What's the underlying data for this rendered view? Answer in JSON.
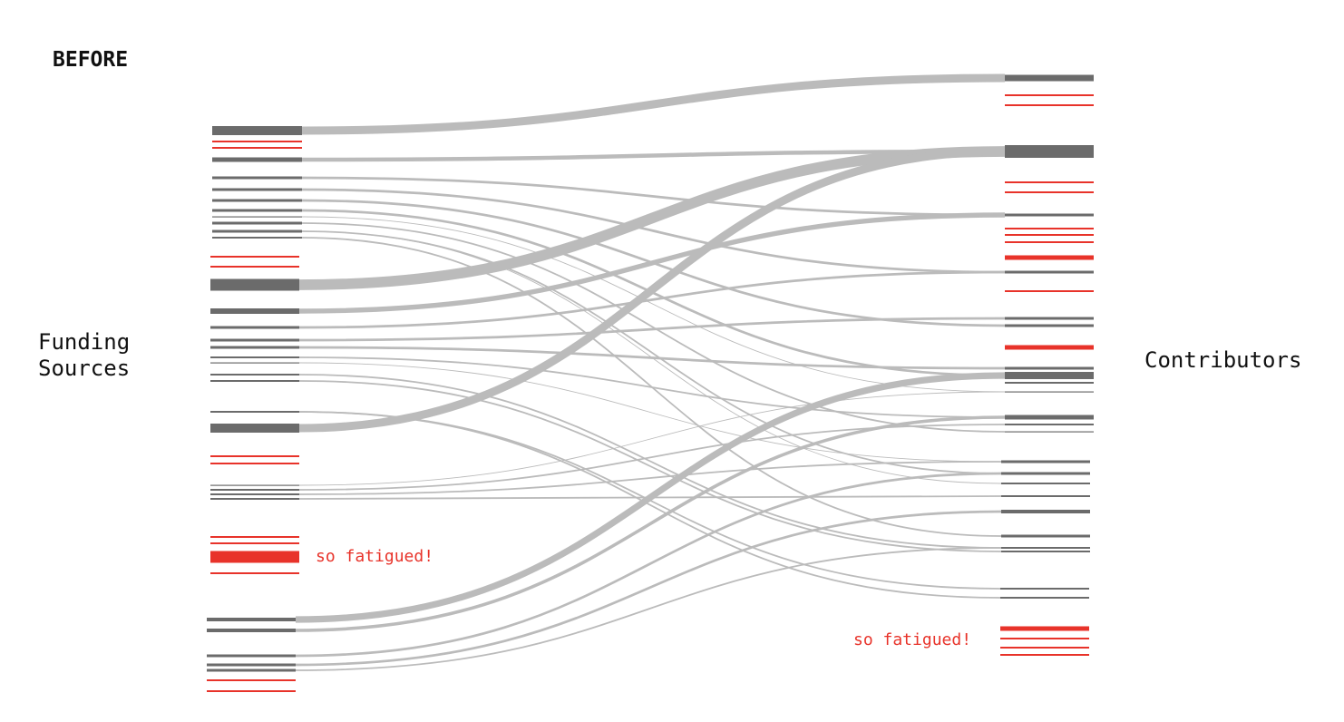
{
  "title": "BEFORE",
  "left_label": "Funding\nSources",
  "right_label": "Contributors",
  "annotations": {
    "left": "so fatigued!",
    "right": "so fatigued!"
  },
  "colors": {
    "active": "#6b6b6b",
    "fatigued": "#e8332a",
    "flow": "#bbbbbb",
    "text": "#111111"
  },
  "left_nodes": [
    {
      "status": "active",
      "value": 10
    },
    {
      "status": "fatigued",
      "value": 2
    },
    {
      "status": "fatigued",
      "value": 2
    },
    {
      "status": "active",
      "value": 5
    },
    {
      "status": "active",
      "value": 3
    },
    {
      "status": "active",
      "value": 3
    },
    {
      "status": "active",
      "value": 3
    },
    {
      "status": "active",
      "value": 3
    },
    {
      "status": "active",
      "value": 1
    },
    {
      "status": "active",
      "value": 3
    },
    {
      "status": "active",
      "value": 3
    },
    {
      "status": "active",
      "value": 2
    },
    {
      "status": "fatigued",
      "value": 2
    },
    {
      "status": "fatigued",
      "value": 2
    },
    {
      "status": "active",
      "value": 13
    },
    {
      "status": "active",
      "value": 6
    },
    {
      "status": "active",
      "value": 3
    },
    {
      "status": "active",
      "value": 3
    },
    {
      "status": "active",
      "value": 3
    },
    {
      "status": "active",
      "value": 2
    },
    {
      "status": "active",
      "value": 1
    },
    {
      "status": "active",
      "value": 2
    },
    {
      "status": "active",
      "value": 2
    },
    {
      "status": "active",
      "value": 2
    },
    {
      "status": "active",
      "value": 10
    },
    {
      "status": "fatigued",
      "value": 2
    },
    {
      "status": "fatigued",
      "value": 2
    },
    {
      "status": "active",
      "value": 1
    },
    {
      "status": "active",
      "value": 2
    },
    {
      "status": "active",
      "value": 2
    },
    {
      "status": "active",
      "value": 2
    },
    {
      "status": "fatigued",
      "value": 2
    },
    {
      "status": "fatigued",
      "value": 2
    },
    {
      "status": "fatigued",
      "value": 13
    },
    {
      "status": "fatigued",
      "value": 2
    },
    {
      "status": "active",
      "value": 4
    },
    {
      "status": "active",
      "value": 4
    },
    {
      "status": "active",
      "value": 3
    },
    {
      "status": "active",
      "value": 3
    },
    {
      "status": "active",
      "value": 3
    },
    {
      "status": "fatigued",
      "value": 2
    },
    {
      "status": "fatigued",
      "value": 2
    }
  ],
  "right_nodes": [
    {
      "status": "active",
      "value": 7
    },
    {
      "status": "fatigued",
      "value": 2
    },
    {
      "status": "fatigued",
      "value": 2
    },
    {
      "status": "active",
      "value": 14
    },
    {
      "status": "fatigued",
      "value": 2
    },
    {
      "status": "fatigued",
      "value": 2
    },
    {
      "status": "active",
      "value": 3
    },
    {
      "status": "fatigued",
      "value": 2
    },
    {
      "status": "fatigued",
      "value": 2
    },
    {
      "status": "fatigued",
      "value": 2
    },
    {
      "status": "fatigued",
      "value": 5
    },
    {
      "status": "active",
      "value": 3
    },
    {
      "status": "fatigued",
      "value": 2
    },
    {
      "status": "active",
      "value": 3
    },
    {
      "status": "active",
      "value": 3
    },
    {
      "status": "fatigued",
      "value": 5
    },
    {
      "status": "active",
      "value": 3
    },
    {
      "status": "active",
      "value": 8
    },
    {
      "status": "active",
      "value": 2
    },
    {
      "status": "active",
      "value": 1
    },
    {
      "status": "active",
      "value": 5
    },
    {
      "status": "active",
      "value": 2
    },
    {
      "status": "active",
      "value": 1
    },
    {
      "status": "active",
      "value": 3
    },
    {
      "status": "active",
      "value": 3
    },
    {
      "status": "active",
      "value": 2
    },
    {
      "status": "active",
      "value": 2
    },
    {
      "status": "active",
      "value": 4
    },
    {
      "status": "active",
      "value": 3
    },
    {
      "status": "active",
      "value": 2
    },
    {
      "status": "active",
      "value": 2
    },
    {
      "status": "active",
      "value": 2
    },
    {
      "status": "active",
      "value": 2
    },
    {
      "status": "fatigued",
      "value": 5
    },
    {
      "status": "fatigued",
      "value": 2
    },
    {
      "status": "fatigued",
      "value": 2
    },
    {
      "status": "fatigued",
      "value": 2
    }
  ],
  "flows": [
    {
      "source": 0,
      "target": 0,
      "value": 10
    },
    {
      "source": 3,
      "target": 3,
      "value": 5
    },
    {
      "source": 4,
      "target": 6,
      "value": 3
    },
    {
      "source": 5,
      "target": 11,
      "value": 3
    },
    {
      "source": 6,
      "target": 14,
      "value": 3
    },
    {
      "source": 7,
      "target": 17,
      "value": 3
    },
    {
      "source": 8,
      "target": 19,
      "value": 1
    },
    {
      "source": 9,
      "target": 22,
      "value": 2
    },
    {
      "source": 10,
      "target": 24,
      "value": 2
    },
    {
      "source": 11,
      "target": 28,
      "value": 2
    },
    {
      "source": 14,
      "target": 3,
      "value": 13
    },
    {
      "source": 15,
      "target": 6,
      "value": 6
    },
    {
      "source": 16,
      "target": 11,
      "value": 3
    },
    {
      "source": 17,
      "target": 13,
      "value": 3
    },
    {
      "source": 18,
      "target": 16,
      "value": 3
    },
    {
      "source": 19,
      "target": 20,
      "value": 2
    },
    {
      "source": 20,
      "target": 23,
      "value": 1
    },
    {
      "source": 21,
      "target": 29,
      "value": 2
    },
    {
      "source": 22,
      "target": 30,
      "value": 2
    },
    {
      "source": 23,
      "target": 31,
      "value": 2
    },
    {
      "source": 24,
      "target": 3,
      "value": 10
    },
    {
      "source": 27,
      "target": 19,
      "value": 1
    },
    {
      "source": 28,
      "target": 21,
      "value": 2
    },
    {
      "source": 29,
      "target": 23,
      "value": 2
    },
    {
      "source": 30,
      "target": 26,
      "value": 2
    },
    {
      "source": 35,
      "target": 17,
      "value": 8
    },
    {
      "source": 36,
      "target": 20,
      "value": 4
    },
    {
      "source": 37,
      "target": 24,
      "value": 3
    },
    {
      "source": 38,
      "target": 27,
      "value": 3
    },
    {
      "source": 39,
      "target": 29,
      "value": 2
    },
    {
      "source": 10,
      "target": 25,
      "value": 1
    },
    {
      "source": 23,
      "target": 32,
      "value": 2
    }
  ]
}
